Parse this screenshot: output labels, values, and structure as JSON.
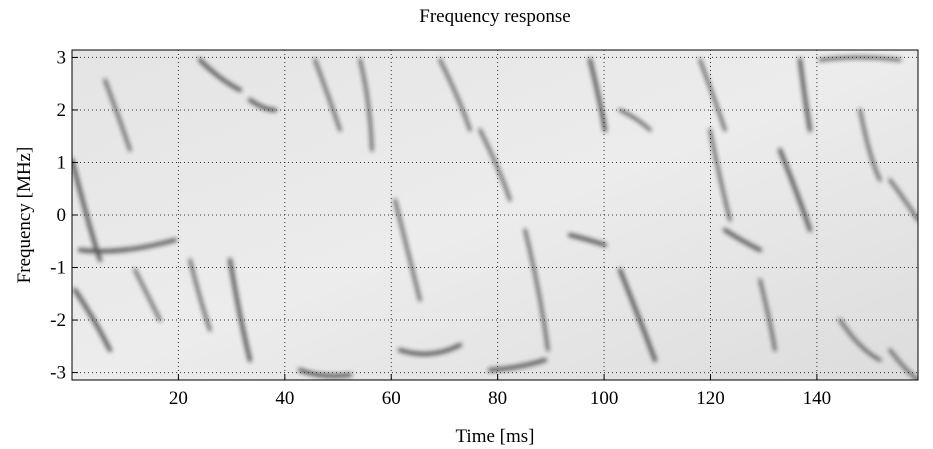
{
  "chart_data": {
    "type": "heatmap",
    "title": "Frequency response",
    "x_label": "Time [ms]",
    "y_label": "Frequency [MHz]",
    "xlim": [
      0,
      159
    ],
    "xticks": [
      20,
      40,
      60,
      80,
      100,
      120,
      140
    ],
    "ylim": [
      -3.1416,
      3.1416
    ],
    "yticks": [
      -3,
      -2,
      -1,
      0,
      1,
      2,
      3
    ],
    "grid": true
  }
}
